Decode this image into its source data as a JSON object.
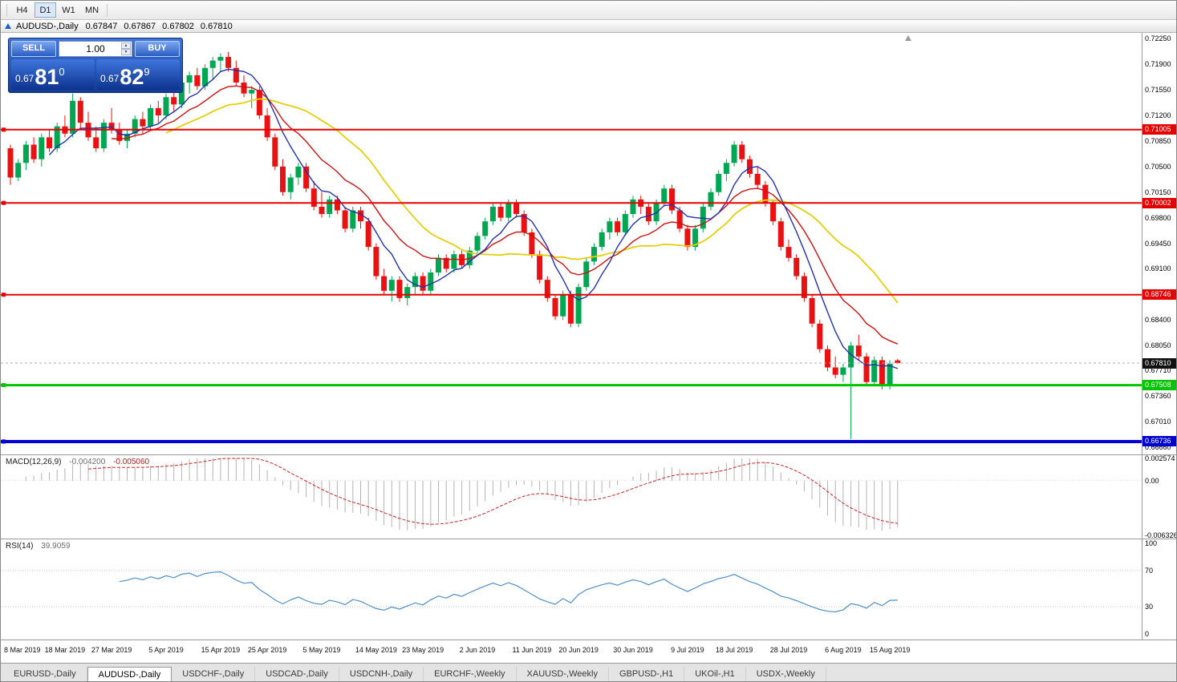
{
  "toolbar": {
    "timeframes": [
      {
        "label": "H4",
        "active": false
      },
      {
        "label": "D1",
        "active": true
      },
      {
        "label": "W1",
        "active": false
      },
      {
        "label": "MN",
        "active": false
      }
    ]
  },
  "chart": {
    "title_symbol": "AUDUSD-,Daily",
    "ohlc": {
      "open": "0.67847",
      "high": "0.67867",
      "low": "0.67802",
      "close": "0.67810"
    },
    "one_click": {
      "sell_label": "SELL",
      "buy_label": "BUY",
      "volume": "1.00",
      "sell_price": {
        "prefix": "0.67",
        "big": "81",
        "sup": "0"
      },
      "buy_price": {
        "prefix": "0.67",
        "big": "82",
        "sup": "9"
      }
    }
  },
  "tabs": [
    {
      "label": "EURUSD-,Daily",
      "active": false
    },
    {
      "label": "AUDUSD-,Daily",
      "active": true
    },
    {
      "label": "USDCHF-,Daily",
      "active": false
    },
    {
      "label": "USDCAD-,Daily",
      "active": false
    },
    {
      "label": "USDCNH-,Daily",
      "active": false
    },
    {
      "label": "EURCHF-,Weekly",
      "active": false
    },
    {
      "label": "XAUUSD-,Weekly",
      "active": false
    },
    {
      "label": "GBPUSD-,H1",
      "active": false
    },
    {
      "label": "UKOil-,H1",
      "active": false
    },
    {
      "label": "USDX-,Weekly",
      "active": false
    }
  ],
  "chart_data": {
    "type": "candlestick",
    "symbol": "AUDUSD-",
    "timeframe": "Daily",
    "price_range": {
      "min": 0.6656,
      "max": 0.7233
    },
    "y_axis_labels": [
      "0.72250",
      "0.71900",
      "0.71550",
      "0.71200",
      "0.70850",
      "0.70500",
      "0.70150",
      "0.69800",
      "0.69450",
      "0.69100",
      "0.68400",
      "0.68050",
      "0.67710",
      "0.67360",
      "0.67010",
      "0.66660"
    ],
    "current_price": {
      "price": 0.6781,
      "label": "0.67810"
    },
    "hlines": [
      {
        "price": 0.71005,
        "label": "0.71005",
        "color": "#e60000",
        "width": 2
      },
      {
        "price": 0.70002,
        "label": "0.70002",
        "color": "#e60000",
        "width": 2
      },
      {
        "price": 0.68746,
        "label": "0.68746",
        "color": "#e60000",
        "width": 2
      },
      {
        "price": 0.67508,
        "label": "0.67508",
        "color": "#00c400",
        "width": 3
      },
      {
        "price": 0.66736,
        "label": "0.66736",
        "color": "#0000d2",
        "width": 4
      }
    ],
    "ma_lines": [
      {
        "name": "slow",
        "type": "sma",
        "period": 21,
        "color": "#e3cf0e"
      },
      {
        "name": "mid",
        "type": "ema",
        "period": 13,
        "color": "#cc1111"
      },
      {
        "name": "fast",
        "type": "sma",
        "period": 6,
        "color": "#2233aa"
      }
    ],
    "indicators": {
      "macd": {
        "label": "MACD(12,26,9)",
        "value_main": "-0.004200",
        "value_signal": "-0.005060",
        "fast": 12,
        "slow": 26,
        "signal": 9,
        "range": {
          "min": -0.006326,
          "max": 0.002574
        },
        "axis_labels": [
          {
            "text": "0.002574",
            "value": 0.002574
          },
          {
            "text": "0.00",
            "value": 0
          },
          {
            "text": "-0.006326",
            "value": -0.006326
          }
        ]
      },
      "rsi": {
        "label": "RSI(14)",
        "value": "39.9059",
        "period": 14,
        "levels": [
          70,
          30
        ],
        "axis_labels": [
          {
            "text": "100",
            "value": 100
          },
          {
            "text": "70",
            "value": 70
          },
          {
            "text": "30",
            "value": 30
          },
          {
            "text": "0",
            "value": 0
          }
        ]
      }
    },
    "date_labels": [
      {
        "label": "8 Mar 2019",
        "index": 0
      },
      {
        "label": "18 Mar 2019",
        "index": 7
      },
      {
        "label": "27 Mar 2019",
        "index": 13
      },
      {
        "label": "5 Apr 2019",
        "index": 20
      },
      {
        "label": "15 Apr 2019",
        "index": 27
      },
      {
        "label": "25 Apr 2019",
        "index": 33
      },
      {
        "label": "5 May 2019",
        "index": 40
      },
      {
        "label": "14 May 2019",
        "index": 47
      },
      {
        "label": "23 May 2019",
        "index": 53
      },
      {
        "label": "2 Jun 2019",
        "index": 60
      },
      {
        "label": "11 Jun 2019",
        "index": 67
      },
      {
        "label": "20 Jun 2019",
        "index": 73
      },
      {
        "label": "30 Jun 2019",
        "index": 80
      },
      {
        "label": "9 Jul 2019",
        "index": 87
      },
      {
        "label": "18 Jul 2019",
        "index": 93
      },
      {
        "label": "28 Jul 2019",
        "index": 100
      },
      {
        "label": "6 Aug 2019",
        "index": 107
      },
      {
        "label": "15 Aug 2019",
        "index": 113
      }
    ],
    "colors": {
      "up": "#00a651",
      "down": "#e81212",
      "ma_fast": "#2233aa",
      "ma_mid": "#cc1111",
      "ma_slow": "#e3cf0e",
      "macd_hist": "#b4b4b4",
      "macd_signal": "#cc2222",
      "rsi_line": "#4f8fca",
      "badge_current": "#111111"
    },
    "candles": [
      [
        0.7075,
        0.708,
        0.7025,
        0.7035
      ],
      [
        0.7035,
        0.706,
        0.703,
        0.7055
      ],
      [
        0.7055,
        0.7085,
        0.7045,
        0.708
      ],
      [
        0.708,
        0.709,
        0.7055,
        0.706
      ],
      [
        0.706,
        0.7095,
        0.705,
        0.709
      ],
      [
        0.709,
        0.71,
        0.707,
        0.7075
      ],
      [
        0.7075,
        0.711,
        0.707,
        0.7105
      ],
      [
        0.7105,
        0.712,
        0.709,
        0.7095
      ],
      [
        0.7095,
        0.715,
        0.709,
        0.714
      ],
      [
        0.714,
        0.7145,
        0.71,
        0.711
      ],
      [
        0.711,
        0.7125,
        0.7085,
        0.709
      ],
      [
        0.709,
        0.7105,
        0.707,
        0.7075
      ],
      [
        0.7075,
        0.7115,
        0.707,
        0.711
      ],
      [
        0.711,
        0.713,
        0.7095,
        0.71
      ],
      [
        0.71,
        0.711,
        0.708,
        0.7085
      ],
      [
        0.7085,
        0.71,
        0.7075,
        0.7095
      ],
      [
        0.7095,
        0.712,
        0.709,
        0.7115
      ],
      [
        0.7115,
        0.7125,
        0.7095,
        0.7105
      ],
      [
        0.7105,
        0.7135,
        0.71,
        0.713
      ],
      [
        0.713,
        0.714,
        0.711,
        0.712
      ],
      [
        0.712,
        0.715,
        0.7115,
        0.7145
      ],
      [
        0.7145,
        0.7155,
        0.7125,
        0.7135
      ],
      [
        0.7135,
        0.717,
        0.713,
        0.7165
      ],
      [
        0.7165,
        0.718,
        0.715,
        0.7175
      ],
      [
        0.7175,
        0.7185,
        0.7155,
        0.716
      ],
      [
        0.716,
        0.719,
        0.7155,
        0.7185
      ],
      [
        0.7185,
        0.72,
        0.717,
        0.7195
      ],
      [
        0.7195,
        0.7205,
        0.718,
        0.72
      ],
      [
        0.72,
        0.7207,
        0.718,
        0.7185
      ],
      [
        0.7185,
        0.7195,
        0.716,
        0.7165
      ],
      [
        0.7165,
        0.7175,
        0.7145,
        0.715
      ],
      [
        0.715,
        0.716,
        0.713,
        0.7155
      ],
      [
        0.7155,
        0.716,
        0.7115,
        0.712
      ],
      [
        0.712,
        0.713,
        0.7085,
        0.709
      ],
      [
        0.709,
        0.7095,
        0.7045,
        0.705
      ],
      [
        0.705,
        0.706,
        0.701,
        0.7015
      ],
      [
        0.7015,
        0.704,
        0.7005,
        0.7035
      ],
      [
        0.7035,
        0.7055,
        0.7025,
        0.705
      ],
      [
        0.705,
        0.7055,
        0.7015,
        0.702
      ],
      [
        0.702,
        0.703,
        0.699,
        0.6995
      ],
      [
        0.6995,
        0.7015,
        0.698,
        0.6985
      ],
      [
        0.6985,
        0.701,
        0.698,
        0.7005
      ],
      [
        0.7005,
        0.701,
        0.6985,
        0.699
      ],
      [
        0.699,
        0.6995,
        0.696,
        0.6965
      ],
      [
        0.6965,
        0.6995,
        0.696,
        0.699
      ],
      [
        0.699,
        0.6995,
        0.6965,
        0.6975
      ],
      [
        0.6975,
        0.698,
        0.6935,
        0.694
      ],
      [
        0.694,
        0.6945,
        0.6895,
        0.69
      ],
      [
        0.69,
        0.691,
        0.6875,
        0.688
      ],
      [
        0.688,
        0.69,
        0.6865,
        0.6895
      ],
      [
        0.6895,
        0.69,
        0.6865,
        0.687
      ],
      [
        0.687,
        0.689,
        0.686,
        0.6885
      ],
      [
        0.6885,
        0.6905,
        0.6875,
        0.69
      ],
      [
        0.69,
        0.6905,
        0.6875,
        0.688
      ],
      [
        0.688,
        0.691,
        0.6875,
        0.6905
      ],
      [
        0.6905,
        0.693,
        0.69,
        0.6925
      ],
      [
        0.6925,
        0.693,
        0.6905,
        0.691
      ],
      [
        0.691,
        0.6935,
        0.6905,
        0.693
      ],
      [
        0.693,
        0.6935,
        0.691,
        0.6915
      ],
      [
        0.6915,
        0.694,
        0.691,
        0.6935
      ],
      [
        0.6935,
        0.696,
        0.693,
        0.6955
      ],
      [
        0.6955,
        0.698,
        0.695,
        0.6975
      ],
      [
        0.6975,
        0.7,
        0.697,
        0.6995
      ],
      [
        0.6995,
        0.7,
        0.6975,
        0.698
      ],
      [
        0.698,
        0.7005,
        0.6975,
        0.7
      ],
      [
        0.7,
        0.7005,
        0.698,
        0.6985
      ],
      [
        0.6985,
        0.699,
        0.6955,
        0.696
      ],
      [
        0.696,
        0.6965,
        0.6925,
        0.693
      ],
      [
        0.693,
        0.6935,
        0.689,
        0.6895
      ],
      [
        0.6895,
        0.69,
        0.6865,
        0.687
      ],
      [
        0.687,
        0.6875,
        0.684,
        0.6845
      ],
      [
        0.6845,
        0.688,
        0.684,
        0.6875
      ],
      [
        0.6875,
        0.688,
        0.683,
        0.6835
      ],
      [
        0.6835,
        0.689,
        0.683,
        0.6885
      ],
      [
        0.6885,
        0.6925,
        0.688,
        0.692
      ],
      [
        0.692,
        0.6945,
        0.6915,
        0.694
      ],
      [
        0.694,
        0.6965,
        0.6935,
        0.696
      ],
      [
        0.696,
        0.698,
        0.695,
        0.6975
      ],
      [
        0.6975,
        0.698,
        0.6955,
        0.696
      ],
      [
        0.696,
        0.699,
        0.6955,
        0.6985
      ],
      [
        0.6985,
        0.701,
        0.698,
        0.7005
      ],
      [
        0.7005,
        0.701,
        0.6985,
        0.6995
      ],
      [
        0.6995,
        0.7,
        0.697,
        0.6975
      ],
      [
        0.6975,
        0.7005,
        0.697,
        0.7
      ],
      [
        0.7,
        0.7025,
        0.6995,
        0.702
      ],
      [
        0.702,
        0.7025,
        0.6985,
        0.699
      ],
      [
        0.699,
        0.6995,
        0.696,
        0.6965
      ],
      [
        0.6965,
        0.697,
        0.6935,
        0.694
      ],
      [
        0.694,
        0.697,
        0.6935,
        0.6965
      ],
      [
        0.6965,
        0.7,
        0.696,
        0.6995
      ],
      [
        0.6995,
        0.702,
        0.699,
        0.7015
      ],
      [
        0.7015,
        0.7045,
        0.701,
        0.704
      ],
      [
        0.704,
        0.706,
        0.703,
        0.7055
      ],
      [
        0.7055,
        0.7085,
        0.705,
        0.708
      ],
      [
        0.708,
        0.7085,
        0.7055,
        0.706
      ],
      [
        0.706,
        0.7065,
        0.7035,
        0.704
      ],
      [
        0.704,
        0.705,
        0.702,
        0.7025
      ],
      [
        0.7025,
        0.703,
        0.6995,
        0.7
      ],
      [
        0.7,
        0.7005,
        0.697,
        0.6975
      ],
      [
        0.6975,
        0.698,
        0.6935,
        0.694
      ],
      [
        0.694,
        0.695,
        0.692,
        0.6925
      ],
      [
        0.6925,
        0.693,
        0.6895,
        0.69
      ],
      [
        0.69,
        0.6905,
        0.6865,
        0.687
      ],
      [
        0.687,
        0.6875,
        0.683,
        0.6835
      ],
      [
        0.6835,
        0.684,
        0.6795,
        0.68
      ],
      [
        0.68,
        0.6805,
        0.677,
        0.6775
      ],
      [
        0.6775,
        0.679,
        0.676,
        0.6765
      ],
      [
        0.6765,
        0.678,
        0.6755,
        0.6775
      ],
      [
        0.6775,
        0.681,
        0.6677,
        0.6805
      ],
      [
        0.6805,
        0.682,
        0.6785,
        0.679
      ],
      [
        0.679,
        0.6795,
        0.675,
        0.6755
      ],
      [
        0.6755,
        0.679,
        0.675,
        0.6785
      ],
      [
        0.6785,
        0.679,
        0.6745,
        0.675
      ],
      [
        0.675,
        0.6785,
        0.6745,
        0.678
      ],
      [
        0.67847,
        0.67867,
        0.67802,
        0.6781
      ]
    ]
  }
}
